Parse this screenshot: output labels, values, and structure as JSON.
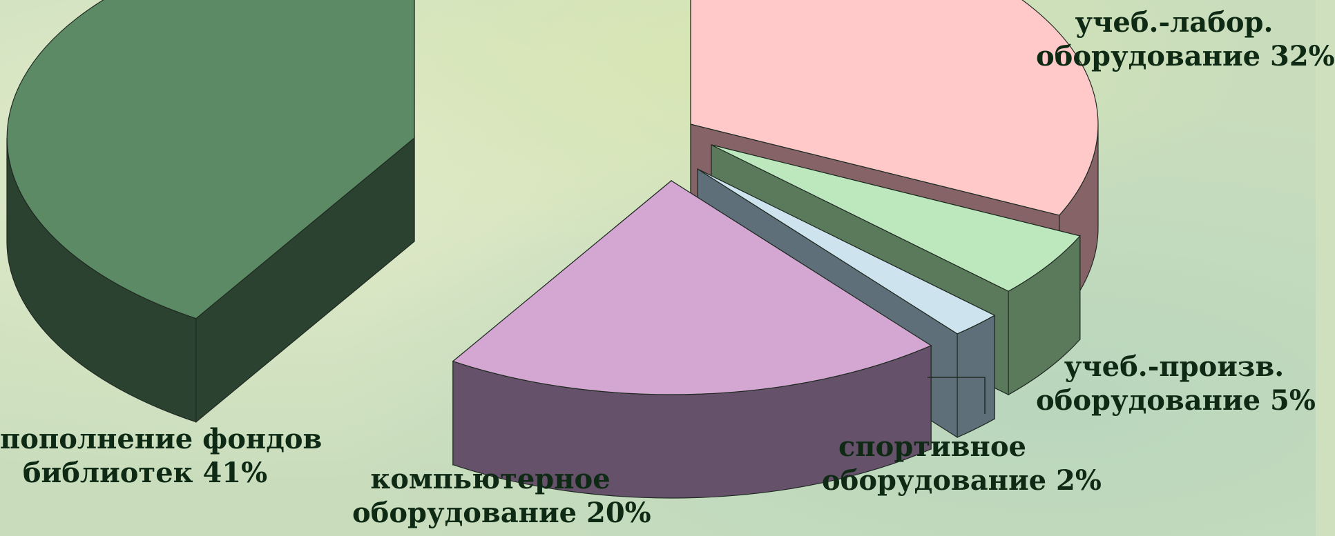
{
  "chart_data": {
    "type": "pie",
    "title": "",
    "style": "exploded 3D pie",
    "slices": [
      {
        "line1": "учеб.-лабор.",
        "line2": "оборудование 32%",
        "value": 32,
        "top_color": "#ffc9c9",
        "side_color": "#856366"
      },
      {
        "line1": "учеб.-произв.",
        "line2": "оборудование 5%",
        "value": 5,
        "top_color": "#bde8bd",
        "side_color": "#5b7a5c"
      },
      {
        "line1": "спортивное",
        "line2": "оборудование 2%",
        "value": 2,
        "top_color": "#cde4ee",
        "side_color": "#5e6f7a"
      },
      {
        "line1": "компьютерное",
        "line2": "оборудование 20%",
        "value": 20,
        "top_color": "#d4a6d2",
        "side_color": "#65516a"
      },
      {
        "line1": "пополнение фондов",
        "line2": "библиотек 41%",
        "value": 41,
        "top_color": "#5b8a64",
        "side_color": "#2c4231"
      }
    ]
  }
}
